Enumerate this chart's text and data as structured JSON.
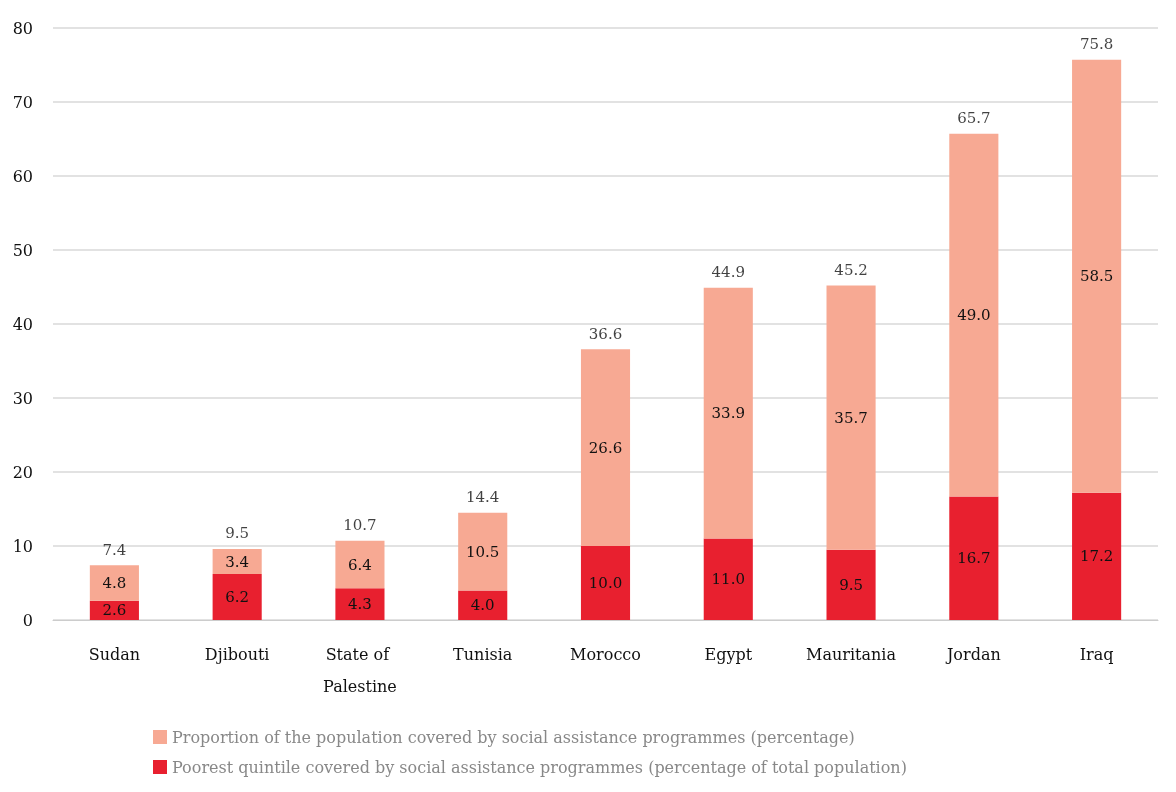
{
  "chart_data": {
    "type": "bar",
    "stacked": true,
    "categories": [
      "Sudan",
      "Djibouti",
      "State of Palestine",
      "Tunisia",
      "Morocco",
      "Egypt",
      "Mauritania",
      "Jordan",
      "Iraq"
    ],
    "series": [
      {
        "name": "Poorest quintile covered by social assistance programmes (percentage of total population)",
        "color": "#e8202f",
        "values": [
          2.6,
          6.2,
          4.3,
          4.0,
          10.0,
          11.0,
          9.5,
          16.7,
          17.2
        ],
        "value_labels": [
          "2.6",
          "6.2",
          "4.3",
          "4.0",
          "10.0",
          "11.0",
          "9.5",
          "16.7",
          "17.2"
        ]
      },
      {
        "name": "Proportion of the population covered by social assistance programmes (percentage)",
        "color": "#f7a993",
        "values": [
          4.8,
          3.4,
          6.4,
          10.5,
          26.6,
          33.9,
          35.7,
          49.0,
          58.5
        ],
        "value_labels": [
          "4.8",
          "3.4",
          "6.4",
          "10.5",
          "26.6",
          "33.9",
          "35.7",
          "49.0",
          "58.5"
        ]
      }
    ],
    "totals": [
      "7.4",
      "9.5",
      "10.7",
      "14.4",
      "36.6",
      "44.9",
      "45.2",
      "65.7",
      "75.8"
    ],
    "ylim": [
      0,
      80
    ],
    "yticks": [
      0,
      10,
      20,
      30,
      40,
      50,
      60,
      70,
      80
    ],
    "grid": "y",
    "legend": "bottom"
  }
}
